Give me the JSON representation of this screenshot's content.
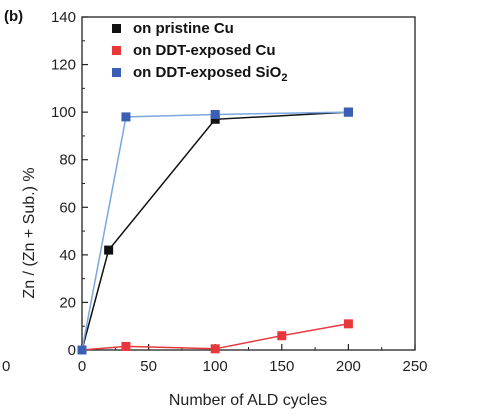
{
  "chart_data": {
    "type": "line",
    "panel_label": "(b)",
    "xlabel": "Number of ALD cycles",
    "ylabel_main": "Zn / (Zn + Sub.) ",
    "ylabel_unit": "%",
    "xlim": [
      0,
      250
    ],
    "ylim": [
      0,
      140
    ],
    "xticks": [
      0,
      50,
      100,
      150,
      200,
      250
    ],
    "yticks": [
      0,
      20,
      40,
      60,
      80,
      100,
      120,
      140
    ],
    "stray_left_label": "0",
    "grid": false,
    "legend_placement": "top-left",
    "series": [
      {
        "name": "on pristine Cu",
        "name_parts": {
          "base": "on pristine Cu",
          "sub": ""
        },
        "color": "#111111",
        "line_color": "#111111",
        "marker": "square",
        "x": [
          0,
          20,
          100,
          200
        ],
        "y": [
          0,
          42,
          97,
          100
        ]
      },
      {
        "name": "on DDT-exposed Cu",
        "name_parts": {
          "base": "on DDT-exposed Cu",
          "sub": ""
        },
        "color": "#e8383b",
        "line_color": "#e8383b",
        "marker": "square",
        "x": [
          0,
          33,
          100,
          150,
          200
        ],
        "y": [
          0,
          1.5,
          0.5,
          6,
          11
        ]
      },
      {
        "name": "on DDT-exposed SiO2",
        "name_parts": {
          "base": "on DDT-exposed SiO",
          "sub": "2"
        },
        "color": "#3b5fb6",
        "line_color": "#7ba6e0",
        "marker": "square",
        "x": [
          0,
          33,
          100,
          200
        ],
        "y": [
          0,
          98,
          99,
          100
        ]
      }
    ]
  }
}
